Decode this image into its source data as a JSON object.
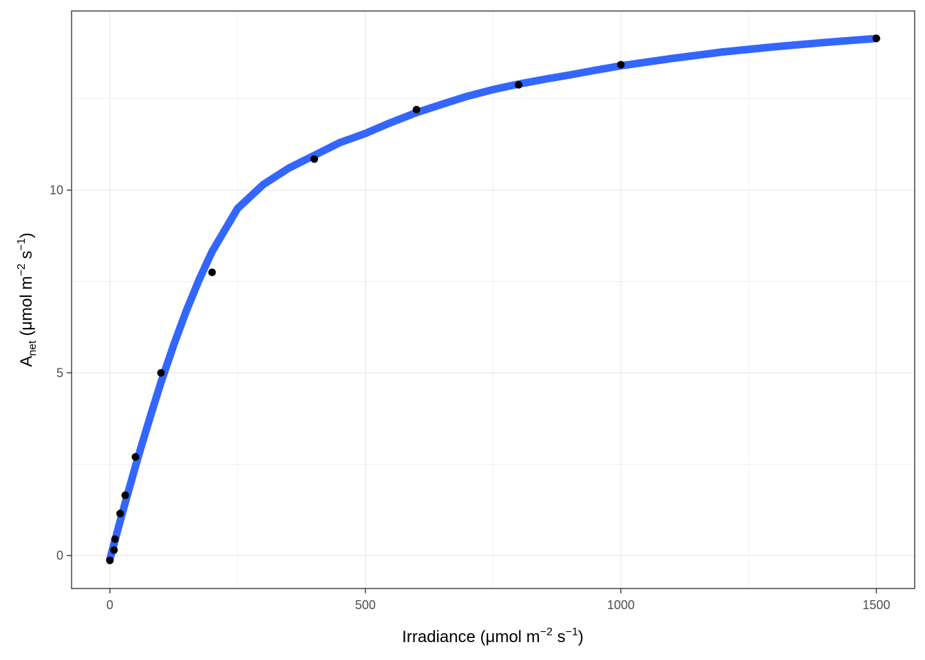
{
  "chart_data": {
    "type": "scatter",
    "xlabel": {
      "prefix": "Irradiance (",
      "mu": "μ",
      "mol": "mol m",
      "exp1": "−2",
      "mid": " s",
      "exp2": "−1",
      "suffix": ")"
    },
    "ylabel": {
      "prefix": "A",
      "sub": "net",
      "mid1": " (",
      "mu": "μ",
      "mol": "mol m",
      "exp1": "−2",
      "mid2": " s",
      "exp2": "−1",
      "suffix": ")"
    },
    "xlim": [
      -75,
      1575
    ],
    "ylim": [
      -0.9,
      14.9
    ],
    "x_ticks": [
      0,
      500,
      1000,
      1500
    ],
    "x_tick_labels": [
      "0",
      "500",
      "1000",
      "1500"
    ],
    "y_ticks": [
      0,
      5,
      10
    ],
    "y_tick_labels": [
      "0",
      "5",
      "10"
    ],
    "grid": true,
    "points": {
      "color": "#000000",
      "x": [
        0,
        8,
        10,
        20,
        30,
        50,
        100,
        200,
        400,
        600,
        800,
        1000,
        1500
      ],
      "y": [
        -0.13,
        0.15,
        0.45,
        1.15,
        1.65,
        2.7,
        5.0,
        7.75,
        10.85,
        12.2,
        12.88,
        13.43,
        14.15
      ]
    },
    "fit": {
      "color": "#3366ff",
      "x": [
        0,
        10,
        20,
        30,
        40,
        50,
        60,
        80,
        100,
        125,
        150,
        175,
        200,
        250,
        300,
        350,
        400,
        450,
        500,
        550,
        600,
        650,
        700,
        750,
        800,
        850,
        900,
        950,
        1000,
        1100,
        1200,
        1300,
        1400,
        1500
      ],
      "y": [
        -0.1,
        0.42,
        0.94,
        1.45,
        1.95,
        2.44,
        2.92,
        3.85,
        4.74,
        5.77,
        6.71,
        7.56,
        8.32,
        9.5,
        10.15,
        10.6,
        10.95,
        11.3,
        11.55,
        11.85,
        12.12,
        12.35,
        12.57,
        12.75,
        12.9,
        13.03,
        13.15,
        13.28,
        13.4,
        13.6,
        13.78,
        13.92,
        14.04,
        14.15
      ]
    }
  }
}
